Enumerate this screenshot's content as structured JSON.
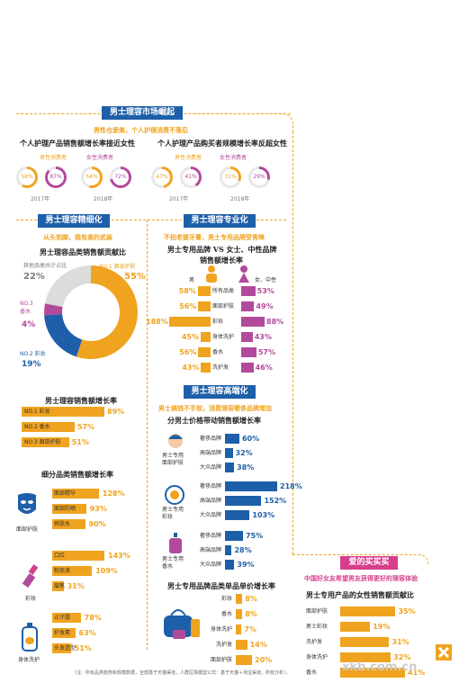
{
  "colors": {
    "orange": "#f0a31f",
    "blue": "#1e5fa9",
    "purple": "#b24a9c",
    "pink": "#d63f8c"
  },
  "market": {
    "banner": "男士理容市场崛起",
    "subtitle": "男性也爱美，个人护理消费不落后",
    "left_title": "个人护理产品销售额增长率接近女性",
    "right_title": "个人护理产品购买者规模增长率反超女性",
    "male_label": "男性消费者",
    "female_label": "女性消费者",
    "year_2017": "2017年",
    "year_2018": "2018年",
    "left_rings": [
      {
        "value": "58%",
        "color": "orange"
      },
      {
        "value": "87%",
        "color": "purple"
      },
      {
        "value": "54%",
        "color": "orange"
      },
      {
        "value": "72%",
        "color": "purple"
      }
    ],
    "right_rings": [
      {
        "value": "47%",
        "color": "orange"
      },
      {
        "value": "41%",
        "color": "purple"
      },
      {
        "value": "31%",
        "color": "orange"
      },
      {
        "value": "29%",
        "color": "purple"
      }
    ]
  },
  "refine": {
    "banner": "男士理容精细化",
    "subtitle": "从头到脚，我有美的武装",
    "donut_title": "男士理容品类销售额贡献比",
    "donut_labels": {
      "other": "其他品类共计占比",
      "other_val": "22%",
      "no3": "NO.3\n香水",
      "no3_val": "4%",
      "no2": "NO.2 彩妆",
      "no2_val": "19%",
      "no1": "NO.1 面部护肤",
      "no1_val": "55%"
    },
    "growth_title": "男士理容销售额增长率",
    "growth": [
      {
        "label": "NO.1 彩妆",
        "value": "89%"
      },
      {
        "label": "NO.2 香水",
        "value": "57%"
      },
      {
        "label": "NO.3 面部护肤",
        "value": "51%"
      }
    ],
    "sub_title": "细分品类销售额增长率",
    "groups": [
      {
        "name": "面部护肤",
        "items": [
          {
            "label": "面部精华",
            "value": "128%"
          },
          {
            "label": "面部防晒",
            "value": "93%"
          },
          {
            "label": "爽肤水",
            "value": "90%"
          }
        ]
      },
      {
        "name": "彩妆",
        "items": [
          {
            "label": "口红",
            "value": "143%"
          },
          {
            "label": "粉底液",
            "value": "109%"
          },
          {
            "label": "眉笔",
            "value": "31%"
          }
        ]
      },
      {
        "name": "身体洗护",
        "items": [
          {
            "label": "止汗露",
            "value": "78%"
          },
          {
            "label": "护发素",
            "value": "63%"
          },
          {
            "label": "头发造型",
            "value": "51%"
          }
        ]
      }
    ]
  },
  "pro": {
    "banner": "男士理容专业化",
    "subtitle": "不拍老婆牙膏，男士专用品牌受青睐",
    "title": "男士专用品牌 VS 女士、中性品牌\n销售额增长率",
    "male_col": "男",
    "female_col": "女、中性",
    "rows": [
      {
        "label": "所有品类",
        "m": "58%",
        "f": "53%"
      },
      {
        "label": "面部护肤",
        "m": "56%",
        "f": "49%"
      },
      {
        "label": "彩妆",
        "m": "188%",
        "f": "88%"
      },
      {
        "label": "身体洗护",
        "m": "45%",
        "f": "43%"
      },
      {
        "label": "香水",
        "m": "56%",
        "f": "57%"
      },
      {
        "label": "洗护发",
        "m": "43%",
        "f": "46%"
      }
    ]
  },
  "high": {
    "banner": "男士理容高端化",
    "subtitle": "男士搞钱不手软，消费理容奢侈品牌增加",
    "title": "分男士价格带动销售额增长率",
    "groups": [
      {
        "name": "男士专用\n面部护肤",
        "items": [
          {
            "label": "奢侈品牌",
            "value": "60%"
          },
          {
            "label": "高端品牌",
            "value": "32%"
          },
          {
            "label": "大众品牌",
            "value": "38%"
          }
        ]
      },
      {
        "name": "男士专用\n彩妆",
        "items": [
          {
            "label": "奢侈品牌",
            "value": "218%"
          },
          {
            "label": "高端品牌",
            "value": "152%"
          },
          {
            "label": "大众品牌",
            "value": "103%"
          }
        ]
      },
      {
        "name": "男士专用\n香水",
        "items": [
          {
            "label": "奢侈品牌",
            "value": "75%"
          },
          {
            "label": "高端品牌",
            "value": "28%"
          },
          {
            "label": "大众品牌",
            "value": "39%"
          }
        ]
      }
    ],
    "unit_title": "男士专用品牌品类单品单价增长率",
    "unit": [
      {
        "label": "彩妆",
        "value": "8%"
      },
      {
        "label": "香水",
        "value": "8%"
      },
      {
        "label": "身体洗护",
        "value": "7%"
      },
      {
        "label": "洗护发",
        "value": "14%"
      },
      {
        "label": "面部护肤",
        "value": "20%"
      }
    ]
  },
  "love": {
    "banner": "爱的买买买",
    "subtitle": "中国好女友希望男友获得更好的理容体验",
    "title": "男士专用产品的女性销售额贡献比",
    "rows": [
      {
        "label": "面部护肤",
        "value": "35%"
      },
      {
        "label": "男士彩妆",
        "value": "19%"
      },
      {
        "label": "洗护发",
        "value": "31%"
      },
      {
        "label": "身体洗护",
        "value": "32%"
      },
      {
        "label": "香水",
        "value": "41%"
      }
    ]
  },
  "footer": {
    "note": "（注：所有品类趋势和规模数据，全部基于天猫渠道，人群区隔模型公式：基于天猫＋淘宝渠道，所有分析），",
    "watermark": "xkb.com.cn"
  },
  "chart_data": [
    {
      "type": "bar",
      "title": "个人护理产品销售额增长率接近女性",
      "categories": [
        "2017年",
        "2018年"
      ],
      "series": [
        {
          "name": "男性消费者",
          "values": [
            58,
            54
          ]
        },
        {
          "name": "女性消费者",
          "values": [
            87,
            72
          ]
        }
      ]
    },
    {
      "type": "bar",
      "title": "个人护理产品购买者规模增长率反超女性",
      "categories": [
        "2017年",
        "2018年"
      ],
      "series": [
        {
          "name": "男性消费者",
          "values": [
            47,
            31
          ]
        },
        {
          "name": "女性消费者",
          "values": [
            41,
            29
          ]
        }
      ]
    },
    {
      "type": "pie",
      "title": "男士理容品类销售额贡献比",
      "categories": [
        "面部护肤",
        "彩妆",
        "香水",
        "其他品类"
      ],
      "values": [
        55,
        19,
        4,
        22
      ]
    },
    {
      "type": "bar",
      "title": "男士理容销售额增长率",
      "categories": [
        "彩妆",
        "香水",
        "面部护肤"
      ],
      "values": [
        89,
        57,
        51
      ]
    },
    {
      "type": "bar",
      "title": "细分品类销售额增长率",
      "categories": [
        "面部精华",
        "面部防晒",
        "爽肤水",
        "口红",
        "粉底液",
        "眉笔",
        "止汗露",
        "护发素",
        "头发造型"
      ],
      "values": [
        128,
        93,
        90,
        143,
        109,
        31,
        78,
        63,
        51
      ]
    },
    {
      "type": "bar",
      "title": "男士专用品牌 VS 女士、中性品牌 销售额增长率",
      "categories": [
        "所有品类",
        "面部护肤",
        "彩妆",
        "身体洗护",
        "香水",
        "洗护发"
      ],
      "series": [
        {
          "name": "男",
          "values": [
            58,
            56,
            188,
            45,
            56,
            43
          ]
        },
        {
          "name": "女、中性",
          "values": [
            53,
            49,
            88,
            43,
            57,
            46
          ]
        }
      ]
    },
    {
      "type": "bar",
      "title": "分男士价格带动销售额增长率",
      "categories": [
        "面部护肤-奢侈品牌",
        "面部护肤-高端品牌",
        "面部护肤-大众品牌",
        "彩妆-奢侈品牌",
        "彩妆-高端品牌",
        "彩妆-大众品牌",
        "香水-奢侈品牌",
        "香水-高端品牌",
        "香水-大众品牌"
      ],
      "values": [
        60,
        32,
        38,
        218,
        152,
        103,
        75,
        28,
        39
      ]
    },
    {
      "type": "bar",
      "title": "男士专用品牌品类单品单价增长率",
      "categories": [
        "彩妆",
        "香水",
        "身体洗护",
        "洗护发",
        "面部护肤"
      ],
      "values": [
        8,
        8,
        7,
        14,
        20
      ]
    },
    {
      "type": "bar",
      "title": "男士专用产品的女性销售额贡献比",
      "categories": [
        "面部护肤",
        "男士彩妆",
        "洗护发",
        "身体洗护",
        "香水"
      ],
      "values": [
        35,
        19,
        31,
        32,
        41
      ]
    }
  ]
}
